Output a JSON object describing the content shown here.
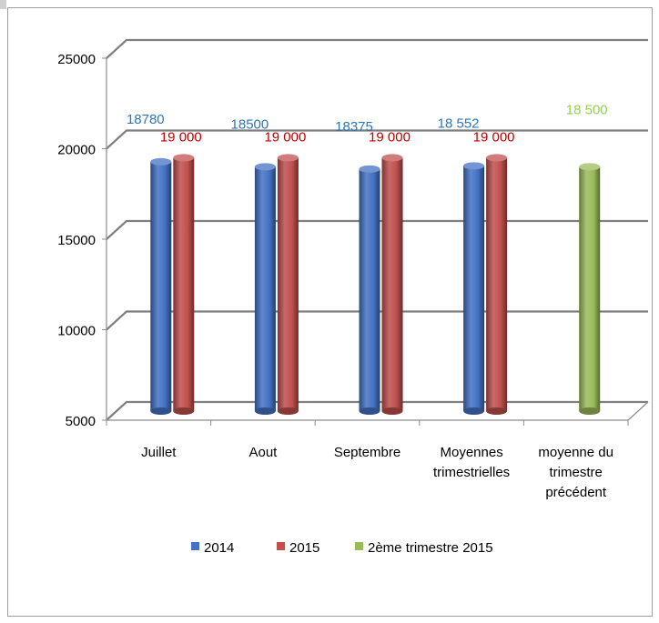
{
  "chart_data": {
    "type": "bar",
    "categories": [
      [
        "Juillet"
      ],
      [
        "Aout"
      ],
      [
        "Septembre"
      ],
      [
        "Moyennes",
        "trimestrielles"
      ],
      [
        "moyenne du",
        "trimestre",
        "précédent"
      ]
    ],
    "series": [
      {
        "name": "2014",
        "color": "#4472C4",
        "label_color": "#2E75B6",
        "values": [
          18780,
          18500,
          18375,
          18552,
          null
        ],
        "labels": [
          "18780",
          "18500",
          "18375",
          "18 552",
          ""
        ]
      },
      {
        "name": "2015",
        "color": "#C0504D",
        "label_color": "#C00000",
        "values": [
          19000,
          19000,
          19000,
          19000,
          null
        ],
        "labels": [
          "19 000",
          "19 000",
          "19 000",
          "19 000",
          ""
        ]
      },
      {
        "name": "2ème trimestre 2015",
        "color": "#9BBB59",
        "label_color": "#92D050",
        "values": [
          null,
          null,
          null,
          null,
          18500
        ],
        "labels": [
          "",
          "",
          "",
          "",
          "18 500"
        ]
      }
    ],
    "ylim": [
      5000,
      25000
    ],
    "yticks": [
      "25000",
      "20000",
      "15000",
      "10000",
      "5000"
    ],
    "grid": true,
    "legend_position": "bottom"
  }
}
